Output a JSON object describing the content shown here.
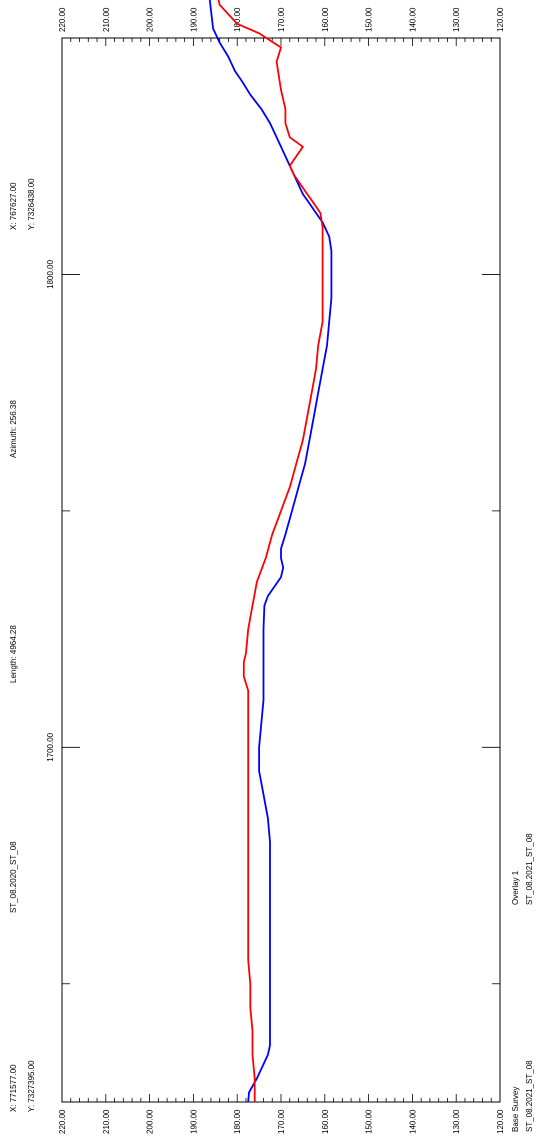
{
  "chart_data": {
    "type": "line",
    "orientation": "rotated-90-ccw",
    "elevation_ticks": [
      "220.00",
      "210.00",
      "200.00",
      "190.00",
      "180.00",
      "170.00",
      "160.00",
      "150.00",
      "140.00",
      "130.00",
      "120.00"
    ],
    "elevation_range": [
      120,
      220
    ],
    "chainage_ticks": [
      "1700.00",
      "1800.00"
    ],
    "chainage_range": [
      1625,
      1850
    ],
    "series": [
      {
        "name": "Base Survey",
        "color": "#0000ff",
        "points": [
          [
            1625,
            177.5
          ],
          [
            1627,
            177.3
          ],
          [
            1630,
            175.5
          ],
          [
            1633,
            174
          ],
          [
            1635,
            173
          ],
          [
            1637,
            172.5
          ],
          [
            1640,
            172.5
          ],
          [
            1645,
            172.5
          ],
          [
            1650,
            172.5
          ],
          [
            1655,
            172.5
          ],
          [
            1660,
            172.5
          ],
          [
            1665,
            172.5
          ],
          [
            1670,
            172.5
          ],
          [
            1675,
            172.5
          ],
          [
            1680,
            172.5
          ],
          [
            1685,
            173
          ],
          [
            1690,
            174
          ],
          [
            1695,
            175
          ],
          [
            1700,
            175
          ],
          [
            1705,
            174.5
          ],
          [
            1710,
            174
          ],
          [
            1715,
            174
          ],
          [
            1720,
            174
          ],
          [
            1725,
            174
          ],
          [
            1730,
            173.8
          ],
          [
            1732,
            173
          ],
          [
            1734,
            171.5
          ],
          [
            1736,
            170
          ],
          [
            1738,
            169.5
          ],
          [
            1740,
            170
          ],
          [
            1742,
            170
          ],
          [
            1745,
            169
          ],
          [
            1750,
            167.5
          ],
          [
            1755,
            166
          ],
          [
            1760,
            164.5
          ],
          [
            1765,
            163.5
          ],
          [
            1770,
            162.5
          ],
          [
            1775,
            161.5
          ],
          [
            1780,
            160.5
          ],
          [
            1785,
            159.5
          ],
          [
            1790,
            159
          ],
          [
            1795,
            158.5
          ],
          [
            1800,
            158.5
          ],
          [
            1805,
            158.5
          ],
          [
            1808,
            159
          ],
          [
            1811,
            160.5
          ],
          [
            1813,
            162
          ],
          [
            1815,
            163.5
          ],
          [
            1817,
            165
          ],
          [
            1820,
            166.5
          ],
          [
            1823,
            168
          ],
          [
            1826,
            169.5
          ],
          [
            1829,
            171
          ],
          [
            1832,
            172.5
          ],
          [
            1835,
            174.5
          ],
          [
            1838,
            177
          ],
          [
            1841,
            179
          ],
          [
            1843,
            180.5
          ],
          [
            1846,
            182
          ],
          [
            1849,
            184
          ],
          [
            1852,
            185.5
          ],
          [
            1856,
            186
          ],
          [
            1860,
            186.5
          ],
          [
            1863,
            188.5
          ],
          [
            1866,
            192
          ],
          [
            1869,
            195
          ],
          [
            1872,
            195
          ],
          [
            1876,
            196
          ],
          [
            1880,
            199
          ],
          [
            1884,
            202
          ],
          [
            1888,
            205
          ],
          [
            1890,
            207
          ]
        ]
      },
      {
        "name": "Overlay 1",
        "color": "#ff0000",
        "points": [
          [
            1625,
            176
          ],
          [
            1630,
            176
          ],
          [
            1635,
            176.5
          ],
          [
            1640,
            176.5
          ],
          [
            1645,
            177
          ],
          [
            1650,
            177
          ],
          [
            1655,
            177.5
          ],
          [
            1660,
            177.5
          ],
          [
            1665,
            177.5
          ],
          [
            1670,
            177.5
          ],
          [
            1675,
            177.5
          ],
          [
            1680,
            177.5
          ],
          [
            1685,
            177.5
          ],
          [
            1690,
            177.5
          ],
          [
            1695,
            177.5
          ],
          [
            1700,
            177.5
          ],
          [
            1705,
            177.5
          ],
          [
            1710,
            177.5
          ],
          [
            1712,
            177.5
          ],
          [
            1715,
            178.5
          ],
          [
            1718,
            178.5
          ],
          [
            1720,
            178
          ],
          [
            1725,
            177.5
          ],
          [
            1730,
            176.5
          ],
          [
            1735,
            175.5
          ],
          [
            1740,
            173.5
          ],
          [
            1745,
            172
          ],
          [
            1750,
            170
          ],
          [
            1755,
            168
          ],
          [
            1760,
            166.5
          ],
          [
            1765,
            165
          ],
          [
            1770,
            164
          ],
          [
            1775,
            163
          ],
          [
            1780,
            162
          ],
          [
            1785,
            161.5
          ],
          [
            1790,
            160.5
          ],
          [
            1795,
            160.5
          ],
          [
            1800,
            160.5
          ],
          [
            1805,
            160.5
          ],
          [
            1810,
            160.5
          ],
          [
            1813,
            161
          ],
          [
            1815,
            162.5
          ],
          [
            1817,
            164
          ],
          [
            1819,
            165.5
          ],
          [
            1821,
            167
          ],
          [
            1823,
            168
          ],
          [
            1825,
            166.5
          ],
          [
            1827,
            165
          ],
          [
            1829,
            168
          ],
          [
            1832,
            169
          ],
          [
            1835,
            169
          ],
          [
            1839,
            170
          ],
          [
            1845,
            171
          ],
          [
            1848,
            170
          ],
          [
            1851,
            175
          ],
          [
            1853,
            180
          ],
          [
            1857,
            184
          ],
          [
            1861,
            185
          ],
          [
            1865,
            189
          ],
          [
            1869,
            192
          ],
          [
            1872,
            194.5
          ],
          [
            1876,
            200
          ],
          [
            1879,
            205
          ],
          [
            1882,
            210
          ],
          [
            1884,
            211
          ],
          [
            1887,
            212
          ],
          [
            1889,
            212.5
          ],
          [
            1891,
            212
          ]
        ]
      }
    ],
    "annotations": {
      "start_x": "X: 771577.00",
      "start_y": "Y: 7327395.00",
      "section_name": "ST_08.2020_ST_08",
      "length": "Length: 4964.28",
      "azimuth": "Azimuth: 256.38",
      "end_x": "X: 767627.00",
      "end_y": "Y: 7326438.00"
    },
    "legend": {
      "base_label": "Base Survey",
      "base_sub": "ST_08.2021_ST_08",
      "overlay_label": "Overlay 1",
      "overlay_sub": "ST_08.2021_ST_08",
      "base_color": "#0000ff",
      "overlay_color": "#ff0000",
      "placement": "bottom-right"
    }
  }
}
